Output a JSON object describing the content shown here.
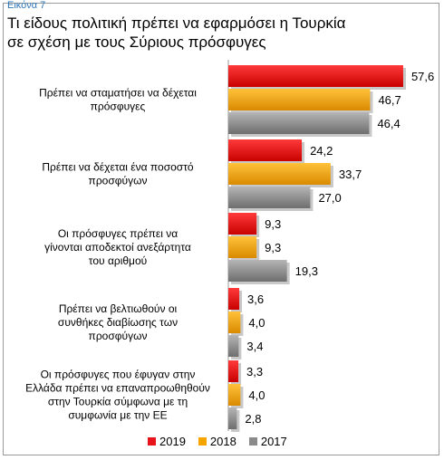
{
  "figure_label": "Εικόνα 7",
  "title_line1": "Τι είδους πολιτική πρέπει να εφαρμόσει η Τουρκία",
  "title_line2": "σε σχέση με τους Σύριους πρόσφυγες",
  "colors": {
    "2019": "#e8141b",
    "2018": "#f6a400",
    "2017": "#8a8a8a"
  },
  "chart_data": {
    "type": "bar",
    "orientation": "horizontal",
    "categories": [
      [
        "Πρέπει να σταματήσει να δέχεται",
        "πρόσφυγες"
      ],
      [
        "Πρέπει να δέχεται ένα ποσοστό",
        "προσφύγων"
      ],
      [
        "Οι πρόσφυγες πρέπει να",
        "γίνονται αποδεκτοί ανεξάρτητα",
        "του αριθμού"
      ],
      [
        "Πρέπει να βελτιωθούν οι",
        "συνθήκες διαβίωσης των",
        "προσφύγων"
      ],
      [
        "Οι πρόσφυγες που έφυγαν στην",
        "Ελλάδα πρέπει να επαναπροωθηθούν",
        "στην Τουρκία σύμφωνα με τη",
        "συμφωνία με την ΕΕ"
      ]
    ],
    "series": [
      {
        "name": "2019",
        "values": [
          57.6,
          24.2,
          9.3,
          3.6,
          3.3
        ],
        "labels": [
          "57,6",
          "24,2",
          "9,3",
          "3,6",
          "3,3"
        ]
      },
      {
        "name": "2018",
        "values": [
          46.7,
          33.7,
          9.3,
          4.0,
          4.0
        ],
        "labels": [
          "46,7",
          "33,7",
          "9,3",
          "4,0",
          "4,0"
        ]
      },
      {
        "name": "2017",
        "values": [
          46.4,
          27.0,
          19.3,
          3.4,
          2.8
        ],
        "labels": [
          "46,4",
          "27,0",
          "19,3",
          "3,4",
          "2,8"
        ]
      }
    ],
    "legend_position": "bottom",
    "grid": false
  }
}
